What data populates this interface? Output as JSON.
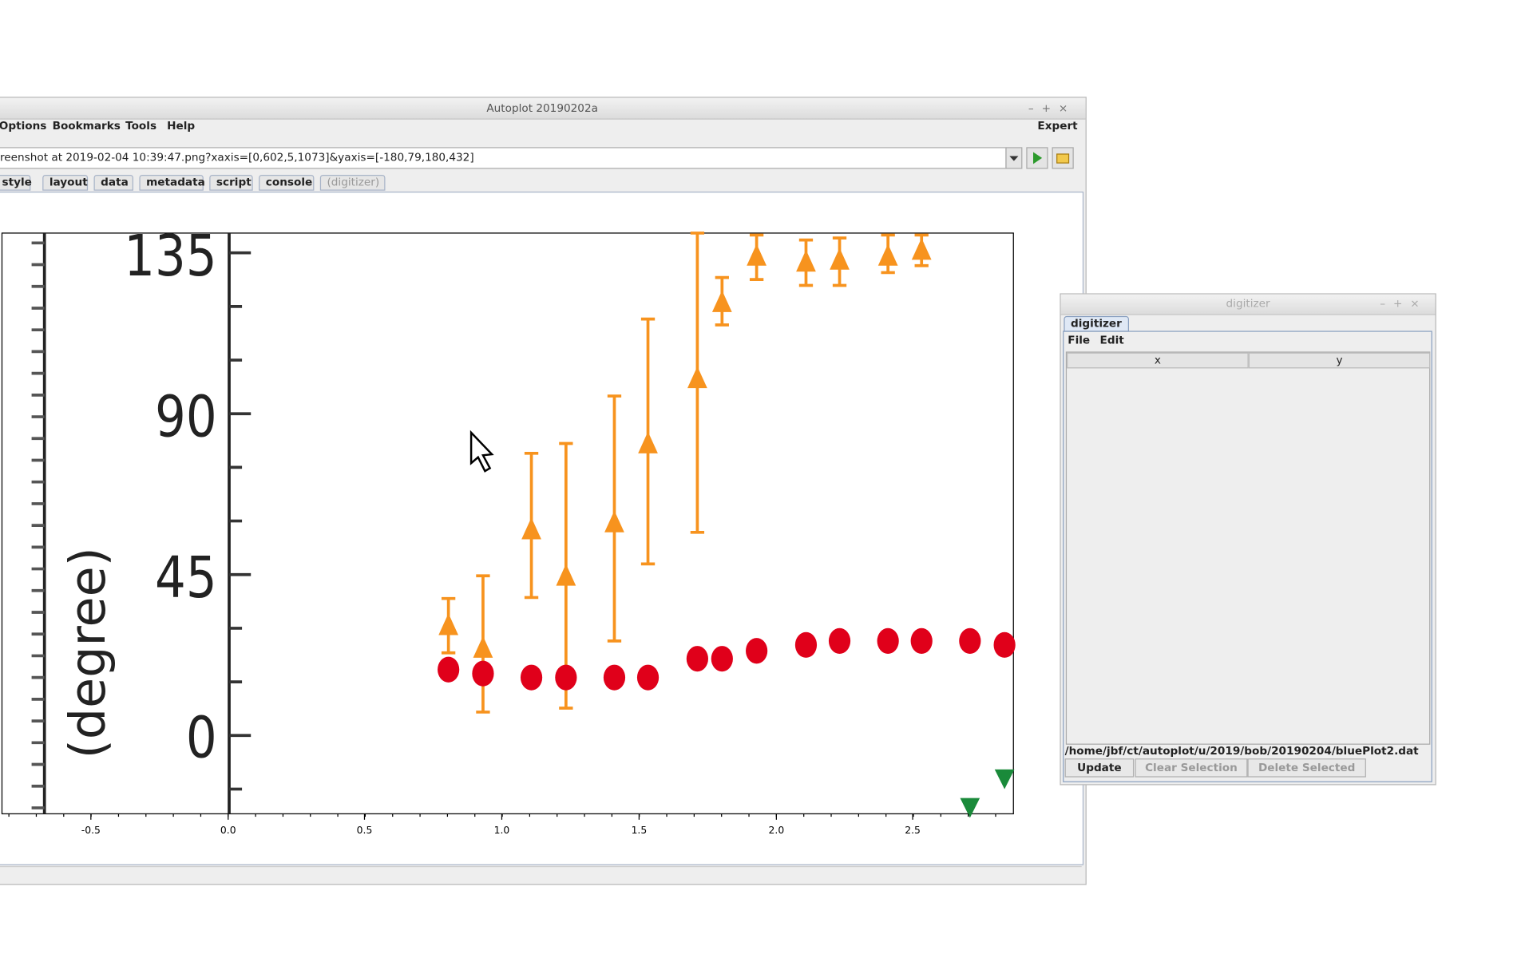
{
  "main_window": {
    "title": "Autoplot 20190202a",
    "menus": [
      "Options",
      "Bookmarks",
      "Tools",
      "Help"
    ],
    "expert": "Expert",
    "address": "reenshot at 2019-02-04 10:39:47.png?xaxis=[0,602,5,1073]&yaxis=[-180,79,180,432]",
    "tabs": [
      "style",
      "layout",
      "data",
      "metadata",
      "script",
      "console",
      "(digitizer)"
    ],
    "plot": {
      "image_labels": [
        "135",
        "90",
        "45",
        "0",
        "(degree)"
      ],
      "x_ticks": [
        "-0.5",
        "0.0",
        "0.5",
        "1.0",
        "1.5",
        "2.0",
        "2.5"
      ]
    }
  },
  "digitizer": {
    "title": "digitizer",
    "tab": "digitizer",
    "menus": [
      "File",
      "Edit"
    ],
    "columns": [
      "x",
      "y"
    ],
    "file": "/home/jbf/ct/autoplot/u/2019/bob/20190204/bluePlot2.dat",
    "buttons": [
      "Update",
      "Clear Selection",
      "Delete Selected"
    ]
  }
}
